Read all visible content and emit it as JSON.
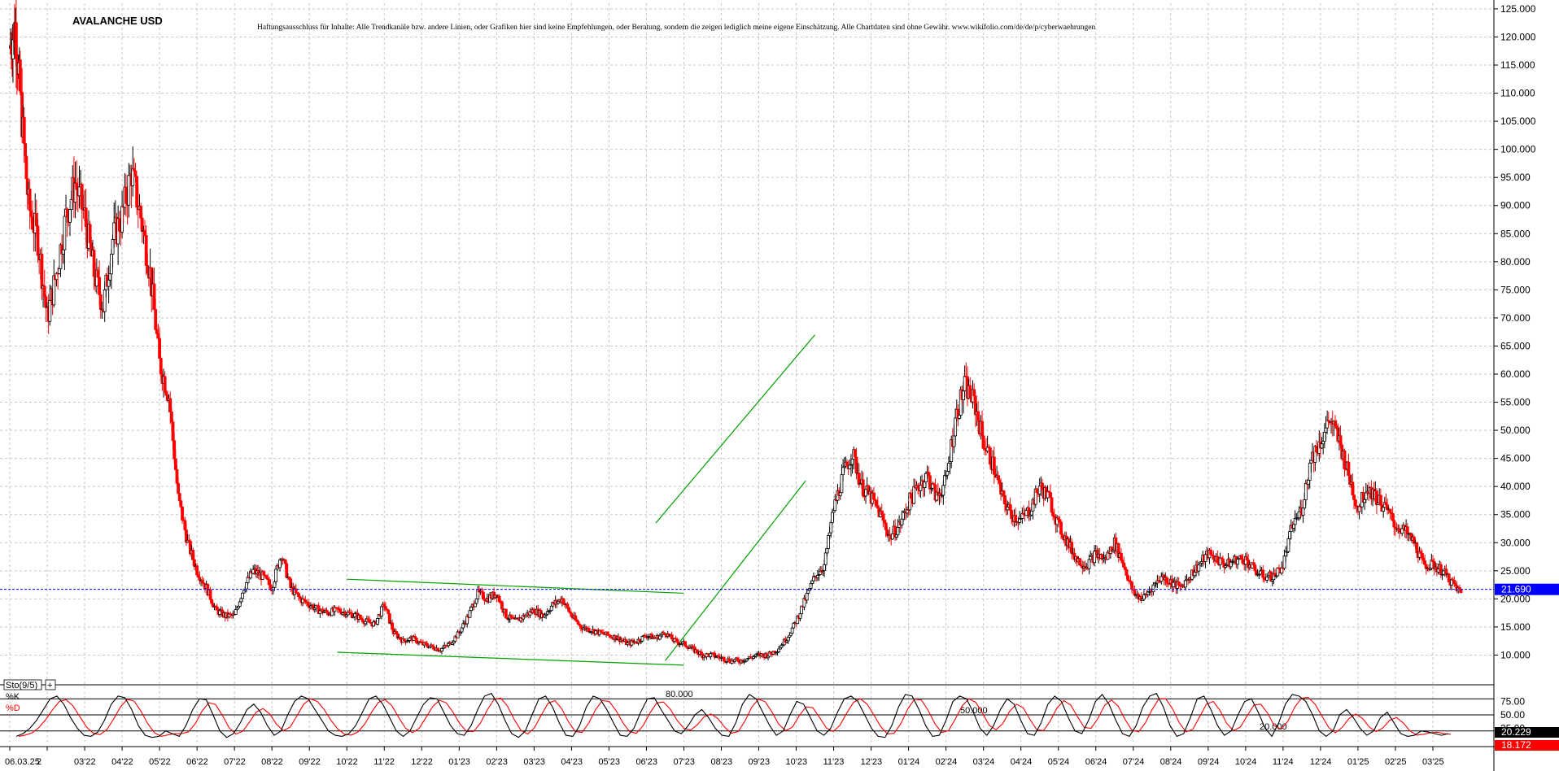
{
  "title": "AVALANCHE USD",
  "disclaimer": "Haftungsausschluss für Inhalte: Alle Trendkanäle bzw. andere Linien, oder Grafiken hier sind keine Empfehlungen, oder Beratung, sondern die zeigen lediglich meine eigene Einschätzung. Alle Chartdaten sind ohne Gewähr. www.wikifolio.com/de/de/p/cyberwaehrungen",
  "colors": {
    "up": "#000000",
    "down": "#ff0000",
    "trend": "#00a000",
    "hline": "#0000ff",
    "grid": "#c8c8c8",
    "stoK": "#000000",
    "stoD": "#ff0000"
  },
  "chart_data": {
    "type": "candlestick",
    "ylim": [
      5,
      126
    ],
    "yticks": [
      10,
      15,
      20,
      25,
      30,
      35,
      40,
      45,
      50,
      55,
      60,
      65,
      70,
      75,
      80,
      85,
      90,
      95,
      100,
      105,
      110,
      115,
      120,
      125
    ],
    "ytick_labels": [
      "10.000",
      "15.000",
      "20.000",
      "25.000",
      "30.000",
      "35.000",
      "40.000",
      "45.000",
      "50.000",
      "55.000",
      "60.000",
      "65.000",
      "70.000",
      "75.000",
      "80.000",
      "85.000",
      "90.000",
      "95.000",
      "100.000",
      "105.000",
      "110.000",
      "115.000",
      "120.000",
      "125.000"
    ],
    "x_labels": [
      "06.03.25",
      "2",
      "03'22",
      "04'22",
      "05'22",
      "06'22",
      "07'22",
      "08'22",
      "09'22",
      "10'22",
      "11'22",
      "12'22",
      "01'23",
      "02'23",
      "03'23",
      "04'23",
      "05'23",
      "06'23",
      "07'23",
      "08'23",
      "09'23",
      "10'23",
      "11'23",
      "12'23",
      "01'24",
      "02'24",
      "03'24",
      "04'24",
      "05'24",
      "06'24",
      "07'24",
      "08'24",
      "09'24",
      "10'24",
      "11'24",
      "12'24",
      "01'25",
      "02'25",
      "03'25"
    ],
    "price_path": [
      [
        0,
        118
      ],
      [
        0.3,
        122
      ],
      [
        0.6,
        108
      ],
      [
        1,
        90
      ],
      [
        1.5,
        84
      ],
      [
        2,
        70
      ],
      [
        2.5,
        78
      ],
      [
        3,
        88
      ],
      [
        3.5,
        94
      ],
      [
        4,
        88
      ],
      [
        4.5,
        78
      ],
      [
        5,
        72
      ],
      [
        5.5,
        84
      ],
      [
        6,
        88
      ],
      [
        6.5,
        96
      ],
      [
        7,
        88
      ],
      [
        7.5,
        78
      ],
      [
        8,
        62
      ],
      [
        8.5,
        56
      ],
      [
        9,
        38
      ],
      [
        9.5,
        30
      ],
      [
        10,
        25
      ],
      [
        10.5,
        22
      ],
      [
        11,
        18
      ],
      [
        11.5,
        17
      ],
      [
        12,
        17
      ],
      [
        12.5,
        22
      ],
      [
        13,
        25
      ],
      [
        13.5,
        24
      ],
      [
        14,
        22
      ],
      [
        14.5,
        28
      ],
      [
        15,
        22
      ],
      [
        15.5,
        20
      ],
      [
        16,
        19
      ],
      [
        16.5,
        18
      ],
      [
        17,
        17.5
      ],
      [
        17.5,
        18
      ],
      [
        18,
        17.5
      ],
      [
        18.5,
        17
      ],
      [
        19,
        16
      ],
      [
        19.5,
        15.5
      ],
      [
        20,
        19
      ],
      [
        20.5,
        14
      ],
      [
        21,
        12.5
      ],
      [
        21.5,
        13
      ],
      [
        22,
        12
      ],
      [
        22.5,
        11.5
      ],
      [
        23,
        11
      ],
      [
        23.5,
        12
      ],
      [
        24,
        14
      ],
      [
        24.5,
        17
      ],
      [
        25,
        21
      ],
      [
        25.5,
        20
      ],
      [
        26,
        21
      ],
      [
        26.5,
        17
      ],
      [
        27,
        16
      ],
      [
        27.5,
        17
      ],
      [
        28,
        18
      ],
      [
        28.5,
        17
      ],
      [
        29,
        19
      ],
      [
        29.5,
        20
      ],
      [
        30,
        17
      ],
      [
        30.5,
        15
      ],
      [
        31,
        14.5
      ],
      [
        31.5,
        14
      ],
      [
        32,
        13.5
      ],
      [
        32.5,
        13
      ],
      [
        33,
        12
      ],
      [
        33.5,
        12.5
      ],
      [
        34,
        13.5
      ],
      [
        34.5,
        13
      ],
      [
        35,
        14
      ],
      [
        35.5,
        12.5
      ],
      [
        36,
        12
      ],
      [
        36.5,
        11
      ],
      [
        37,
        10
      ],
      [
        37.5,
        10
      ],
      [
        38,
        9.5
      ],
      [
        38.5,
        9
      ],
      [
        39,
        9
      ],
      [
        39.5,
        9.5
      ],
      [
        40,
        10
      ],
      [
        40.5,
        10
      ],
      [
        41,
        11
      ],
      [
        41.5,
        13
      ],
      [
        42,
        16
      ],
      [
        42.5,
        20
      ],
      [
        43,
        24
      ],
      [
        43.5,
        26
      ],
      [
        44,
        36
      ],
      [
        44.5,
        42
      ],
      [
        45,
        46
      ],
      [
        45.5,
        40
      ],
      [
        46,
        38
      ],
      [
        46.5,
        35
      ],
      [
        47,
        31
      ],
      [
        47.5,
        33
      ],
      [
        48,
        37
      ],
      [
        48.5,
        40
      ],
      [
        49,
        42
      ],
      [
        49.5,
        38
      ],
      [
        50,
        41
      ],
      [
        50.5,
        52
      ],
      [
        51,
        58
      ],
      [
        51.5,
        55
      ],
      [
        52,
        48
      ],
      [
        52.5,
        44
      ],
      [
        53,
        38
      ],
      [
        53.5,
        35
      ],
      [
        54,
        34
      ],
      [
        54.5,
        36
      ],
      [
        55,
        40
      ],
      [
        55.5,
        38
      ],
      [
        56,
        33
      ],
      [
        56.5,
        30
      ],
      [
        57,
        27
      ],
      [
        57.5,
        26
      ],
      [
        58,
        28
      ],
      [
        58.5,
        27
      ],
      [
        59,
        30
      ],
      [
        59.5,
        26
      ],
      [
        60,
        21
      ],
      [
        60.5,
        20
      ],
      [
        61,
        22
      ],
      [
        61.5,
        24
      ],
      [
        62,
        23
      ],
      [
        62.5,
        22
      ],
      [
        63,
        24
      ],
      [
        63.5,
        26
      ],
      [
        64,
        28
      ],
      [
        64.5,
        27
      ],
      [
        65,
        26
      ],
      [
        65.5,
        27
      ],
      [
        66,
        27
      ],
      [
        66.5,
        25
      ],
      [
        67,
        24
      ],
      [
        67.5,
        24
      ],
      [
        68,
        26
      ],
      [
        68.5,
        33
      ],
      [
        69,
        36
      ],
      [
        69.5,
        45
      ],
      [
        70,
        48
      ],
      [
        70.5,
        52
      ],
      [
        71,
        48
      ],
      [
        71.5,
        42
      ],
      [
        72,
        36
      ],
      [
        72.5,
        40
      ],
      [
        73,
        38
      ],
      [
        73.5,
        36
      ],
      [
        74,
        33
      ],
      [
        74.5,
        32
      ],
      [
        75,
        30
      ],
      [
        75.5,
        26
      ],
      [
        76,
        26
      ],
      [
        76.5,
        25
      ],
      [
        77,
        23
      ],
      [
        77.5,
        21
      ]
    ],
    "last_price": 21.69,
    "last_price_label": "21.690",
    "trendlines": [
      {
        "from": [
          18,
          23.5
        ],
        "to": [
          36,
          21
        ]
      },
      {
        "from": [
          17.5,
          10.5
        ],
        "to": [
          36,
          8.2
        ]
      },
      {
        "from": [
          34.5,
          33.5
        ],
        "to": [
          43,
          67
        ]
      },
      {
        "from": [
          35,
          9
        ],
        "to": [
          42.5,
          41
        ]
      }
    ],
    "indicator": {
      "name": "Sto(9/5)",
      "k_label": "%K",
      "d_label": "%D",
      "levels": [
        80,
        50,
        20
      ],
      "level_labels": [
        "80.000",
        "50.000",
        "20.000"
      ],
      "yticks": [
        75,
        50,
        25
      ],
      "ytick_labels": [
        "75.00",
        "50.00",
        "25.00"
      ],
      "k_value_label": "20.229",
      "d_value_label": "18.172",
      "k_values": [
        10,
        15,
        25,
        40,
        60,
        80,
        85,
        70,
        45,
        25,
        12,
        10,
        18,
        40,
        70,
        85,
        82,
        60,
        30,
        12,
        8,
        10,
        20,
        15,
        10,
        30,
        60,
        80,
        78,
        50,
        20,
        8,
        15,
        35,
        60,
        70,
        55,
        30,
        12,
        20,
        50,
        75,
        85,
        80,
        60,
        40,
        20,
        12,
        10,
        15,
        30,
        55,
        80,
        85,
        70,
        45,
        20,
        10,
        20,
        45,
        70,
        82,
        80,
        55,
        30,
        15,
        12,
        30,
        60,
        85,
        90,
        70,
        40,
        15,
        8,
        20,
        50,
        80,
        85,
        65,
        35,
        12,
        10,
        30,
        65,
        85,
        80,
        60,
        35,
        12,
        10,
        25,
        55,
        80,
        82,
        60,
        40,
        20,
        15,
        30,
        50,
        60,
        45,
        25,
        12,
        10,
        35,
        70,
        88,
        80,
        55,
        30,
        12,
        20,
        50,
        75,
        70,
        45,
        20,
        12,
        25,
        55,
        80,
        85,
        75,
        50,
        25,
        10,
        8,
        30,
        65,
        88,
        85,
        60,
        30,
        10,
        12,
        40,
        75,
        85,
        80,
        55,
        25,
        12,
        30,
        60,
        80,
        70,
        40,
        15,
        12,
        35,
        70,
        85,
        75,
        45,
        20,
        15,
        40,
        75,
        88,
        70,
        40,
        15,
        10,
        30,
        65,
        85,
        90,
        65,
        30,
        10,
        15,
        45,
        80,
        85,
        60,
        30,
        12,
        20,
        50,
        75,
        80,
        55,
        25,
        10,
        35,
        70,
        88,
        85,
        75,
        50,
        20,
        10,
        20,
        50,
        60,
        45,
        25,
        12,
        20,
        45,
        55,
        35,
        15,
        10,
        12,
        20,
        18,
        15,
        12,
        15
      ]
    }
  }
}
